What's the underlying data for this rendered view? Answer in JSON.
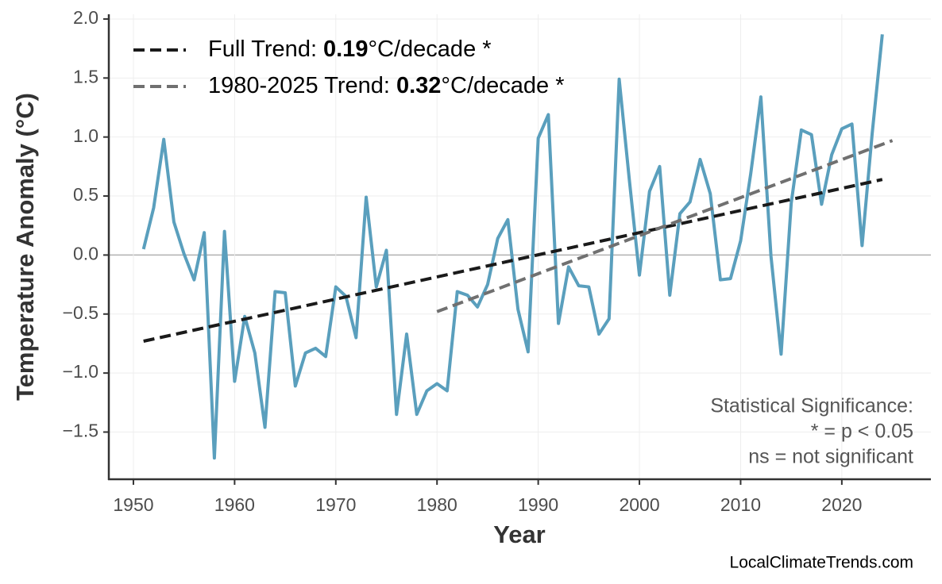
{
  "chart_data": {
    "type": "line",
    "x_label": "Year",
    "y_label": "Temperature Anomaly (°C)",
    "x": [
      1951,
      1952,
      1953,
      1954,
      1955,
      1956,
      1957,
      1958,
      1959,
      1960,
      1961,
      1962,
      1963,
      1964,
      1965,
      1966,
      1967,
      1968,
      1969,
      1970,
      1971,
      1972,
      1973,
      1974,
      1975,
      1976,
      1977,
      1978,
      1979,
      1980,
      1981,
      1982,
      1983,
      1984,
      1985,
      1986,
      1987,
      1988,
      1989,
      1990,
      1991,
      1992,
      1993,
      1994,
      1995,
      1996,
      1997,
      1998,
      1999,
      2000,
      2001,
      2002,
      2003,
      2004,
      2005,
      2006,
      2007,
      2008,
      2009,
      2010,
      2011,
      2012,
      2013,
      2014,
      2015,
      2016,
      2017,
      2018,
      2019,
      2020,
      2021,
      2022,
      2023,
      2024
    ],
    "values": [
      0.05,
      0.4,
      0.98,
      0.28,
      0.01,
      -0.21,
      0.19,
      -1.72,
      0.2,
      -1.07,
      -0.52,
      -0.83,
      -1.46,
      -0.31,
      -0.32,
      -1.11,
      -0.83,
      -0.79,
      -0.86,
      -0.27,
      -0.35,
      -0.7,
      0.49,
      -0.27,
      0.04,
      -1.35,
      -0.67,
      -1.35,
      -1.15,
      -1.09,
      -1.15,
      -0.31,
      -0.34,
      -0.44,
      -0.25,
      0.14,
      0.3,
      -0.46,
      -0.82,
      0.99,
      1.19,
      -0.58,
      -0.1,
      -0.26,
      -0.27,
      -0.67,
      -0.54,
      1.49,
      0.64,
      -0.17,
      0.54,
      0.75,
      -0.34,
      0.35,
      0.45,
      0.81,
      0.52,
      -0.21,
      -0.2,
      0.12,
      0.69,
      1.34,
      -0.01,
      -0.84,
      0.44,
      1.06,
      1.02,
      0.43,
      0.85,
      1.07,
      1.11,
      0.08,
      1.03,
      1.87
    ],
    "color": "#5a9fbd",
    "trends": [
      {
        "label": {
          "prefix": "Full Trend:",
          "value": "0.19",
          "suffix": "°C/decade *"
        },
        "x": [
          1951,
          2024
        ],
        "values": [
          -0.73,
          0.64
        ],
        "color": "#1a1a1a"
      },
      {
        "label": {
          "prefix": "1980-2025 Trend:",
          "value": "0.32",
          "suffix": "°C/decade *"
        },
        "x": [
          1980,
          2025
        ],
        "values": [
          -0.48,
          0.97
        ],
        "color": "#707070"
      }
    ],
    "annotation": [
      "Statistical Significance:",
      "* = p < 0.05",
      "ns = not significant"
    ],
    "source": "LocalClimateTrends.com",
    "xlim": [
      1947.57,
      2028.8
    ],
    "ylim": [
      -1.9,
      2.04
    ],
    "xticks": [
      1950,
      1960,
      1970,
      1980,
      1990,
      2000,
      2010,
      2020
    ],
    "yticks": [
      {
        "value": -1.5,
        "label": "−1.5"
      },
      {
        "value": -1.0,
        "label": "−1.0"
      },
      {
        "value": -0.5,
        "label": "−0.5"
      },
      {
        "value": 0,
        "label": "0.0"
      },
      {
        "value": 0.5,
        "label": "0.5"
      },
      {
        "value": 1.0,
        "label": "1.0"
      },
      {
        "value": 1.5,
        "label": "1.5"
      },
      {
        "value": 2.0,
        "label": "2.0"
      }
    ],
    "grid": true
  }
}
